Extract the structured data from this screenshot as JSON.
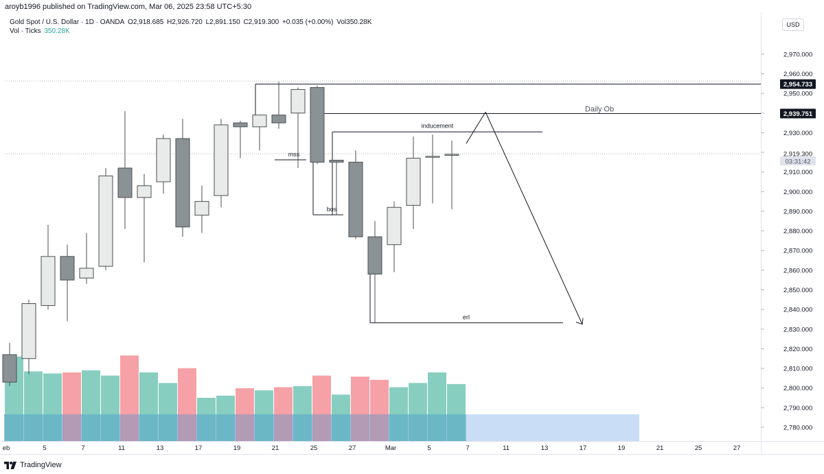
{
  "header": {
    "publisher": "aroyb1996 published on TradingView.com, Mar 06, 2025 23:58 UTC+5:30",
    "symbol": "Gold Spot / U.S. Dollar · 1D · OANDA",
    "open": "O2,918.685",
    "high": "H2,926.720",
    "low": "L2,891.150",
    "close": "C2,919.300",
    "change": "+0.035 (+0.00%)",
    "volume": "Vol350.28K",
    "vol_label": "Vol · Ticks",
    "vol_value": "350.28K",
    "currency": "USD"
  },
  "footer": {
    "brand": "TradingView"
  },
  "chart_data": {
    "type": "candlestick",
    "ylim": [
      2773,
      2978
    ],
    "y_ticks": [
      2780,
      2790,
      2800,
      2810,
      2820,
      2830,
      2840,
      2850,
      2860,
      2870,
      2880,
      2890,
      2900,
      2910,
      2920,
      2930,
      2940,
      2950,
      2960,
      2970
    ],
    "y_tick_labels": [
      "2,780.000",
      "2,790.000",
      "2,800.000",
      "2,810.000",
      "2,820.000",
      "2,830.000",
      "2,840.000",
      "2,850.000",
      "2,860.000",
      "2,870.000",
      "2,880.000",
      "2,890.000",
      "2,900.000",
      "2,910.000",
      "2,920.000",
      "2,930.000",
      "2,940.000",
      "2,950.000",
      "2,960.000",
      "2,970.000"
    ],
    "x_tick_labels": [
      "eb",
      "5",
      "7",
      "11",
      "13",
      "17",
      "19",
      "21",
      "25",
      "27",
      "Mar",
      "5",
      "7",
      "11",
      "13",
      "17",
      "19",
      "21",
      "25",
      "27"
    ],
    "x_tick_slots": [
      0,
      2,
      4,
      6,
      8,
      10,
      12,
      14,
      16,
      18,
      20,
      22,
      24,
      26,
      28,
      30,
      32,
      34,
      36,
      38
    ],
    "colors": {
      "up": "#e8ebe9",
      "down": "#8a9296",
      "edge": "#4a4e50",
      "vol_up": "#82cbbd",
      "vol_down": "#f59ca2",
      "vol_fill": "#c9def6"
    },
    "candles": [
      {
        "o": 2817,
        "h": 2823,
        "l": 2801,
        "c": 2803
      },
      {
        "o": 2815,
        "h": 2845,
        "l": 2807,
        "c": 2843
      },
      {
        "o": 2842,
        "h": 2883,
        "l": 2840,
        "c": 2867
      },
      {
        "o": 2867,
        "h": 2873,
        "l": 2834,
        "c": 2855
      },
      {
        "o": 2856,
        "h": 2879,
        "l": 2853,
        "c": 2861
      },
      {
        "o": 2862,
        "h": 2912,
        "l": 2860,
        "c": 2908
      },
      {
        "o": 2912,
        "h": 2941,
        "l": 2881,
        "c": 2897
      },
      {
        "o": 2897,
        "h": 2909,
        "l": 2864,
        "c": 2903
      },
      {
        "o": 2905,
        "h": 2929,
        "l": 2899,
        "c": 2927
      },
      {
        "o": 2927,
        "h": 2937,
        "l": 2877,
        "c": 2882
      },
      {
        "o": 2888,
        "h": 2903,
        "l": 2879,
        "c": 2895
      },
      {
        "o": 2898,
        "h": 2937,
        "l": 2892,
        "c": 2934
      },
      {
        "o": 2935,
        "h": 2936,
        "l": 2917,
        "c": 2933
      },
      {
        "o": 2933,
        "h": 2939,
        "l": 2921,
        "c": 2939
      },
      {
        "o": 2939,
        "h": 2956,
        "l": 2932,
        "c": 2935
      },
      {
        "o": 2940,
        "h": 2953,
        "l": 2912,
        "c": 2952
      },
      {
        "o": 2953,
        "h": 2954,
        "l": 2914,
        "c": 2915
      },
      {
        "o": 2916,
        "h": 2916,
        "l": 2888,
        "c": 2915
      },
      {
        "o": 2915,
        "h": 2921,
        "l": 2876,
        "c": 2877
      },
      {
        "o": 2877,
        "h": 2885,
        "l": 2833,
        "c": 2858
      },
      {
        "o": 2873,
        "h": 2895,
        "l": 2859,
        "c": 2892
      },
      {
        "o": 2893,
        "h": 2928,
        "l": 2881,
        "c": 2917
      },
      {
        "o": 2918,
        "h": 2929,
        "l": 2894,
        "c": 2918
      },
      {
        "o": 2919,
        "h": 2926,
        "l": 2891,
        "c": 2919
      }
    ],
    "volume": [
      {
        "v": 0.8,
        "up": true
      },
      {
        "v": 0.66,
        "up": true
      },
      {
        "v": 0.64,
        "up": true
      },
      {
        "v": 0.65,
        "up": false
      },
      {
        "v": 0.67,
        "up": true
      },
      {
        "v": 0.62,
        "up": true
      },
      {
        "v": 0.81,
        "up": false
      },
      {
        "v": 0.65,
        "up": true
      },
      {
        "v": 0.55,
        "up": true
      },
      {
        "v": 0.69,
        "up": false
      },
      {
        "v": 0.41,
        "up": true
      },
      {
        "v": 0.43,
        "up": true
      },
      {
        "v": 0.5,
        "up": false
      },
      {
        "v": 0.48,
        "up": true
      },
      {
        "v": 0.51,
        "up": false
      },
      {
        "v": 0.52,
        "up": true
      },
      {
        "v": 0.62,
        "up": false
      },
      {
        "v": 0.44,
        "up": true
      },
      {
        "v": 0.61,
        "up": false
      },
      {
        "v": 0.58,
        "up": false
      },
      {
        "v": 0.51,
        "up": true
      },
      {
        "v": 0.55,
        "up": true
      },
      {
        "v": 0.65,
        "up": true
      },
      {
        "v": 0.54,
        "up": true
      }
    ],
    "price_labels": [
      {
        "label": "2,954.733",
        "price": 2954.733,
        "style": "dark"
      },
      {
        "label": "2,939.751",
        "price": 2939.751,
        "style": "dark"
      },
      {
        "label": "2,919.300",
        "price": 2919.3,
        "style": "light"
      }
    ],
    "countdown": "03:31:42",
    "annotations": {
      "daily_ob": "Daily Ob",
      "inducement": "inducement",
      "mss": "mss",
      "bos": "bos",
      "erl": "erl"
    }
  }
}
